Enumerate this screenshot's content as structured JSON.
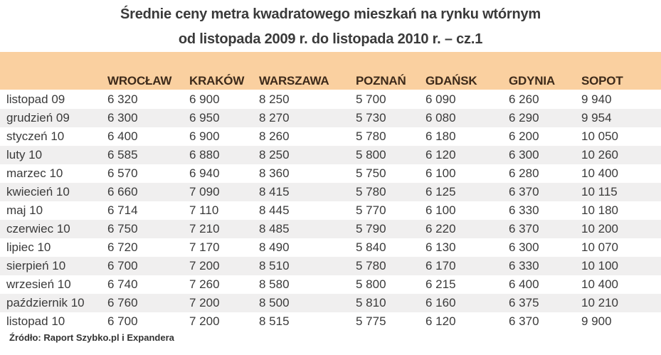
{
  "title": {
    "line1": "Średnie ceny metra kwadratowego mieszkań na rynku wtórnym",
    "line2": "od listopada 2009 r. do listopada 2010 r. – cz.1"
  },
  "colors": {
    "header_band": "#fad0a0",
    "header_text": "#3d2a1a",
    "row_stripe": "#f0efef",
    "body_text": "#3a3a3a"
  },
  "table": {
    "columns": [
      "",
      "WROCŁAW",
      "KRAKÓW",
      "WARSZAWA",
      "POZNAŃ",
      "GDAŃSK",
      "GDYNIA",
      "SOPOT"
    ],
    "rows": [
      [
        "listopad 09",
        "6 320",
        "6 900",
        "8 250",
        "5 700",
        "6 090",
        "6 260",
        "9 940"
      ],
      [
        "grudzień 09",
        "6 300",
        "6 950",
        "8 270",
        "5 730",
        "6 080",
        "6 290",
        "9 954"
      ],
      [
        "styczeń 10",
        "6 400",
        "6 900",
        "8 260",
        "5 780",
        "6 180",
        "6 200",
        "10 050"
      ],
      [
        "luty 10",
        "6 585",
        "6 880",
        "8 250",
        "5 800",
        "6 120",
        "6 300",
        "10 260"
      ],
      [
        "marzec 10",
        "6 570",
        "6 940",
        "8 360",
        "5 750",
        "6 100",
        "6 280",
        "10 400"
      ],
      [
        "kwiecień 10",
        "6 660",
        "7 090",
        "8 415",
        "5 780",
        "6 125",
        "6 370",
        "10 115"
      ],
      [
        "maj 10",
        "6 714",
        "7 110",
        "8 445",
        "5 770",
        "6 100",
        "6 330",
        "10 180"
      ],
      [
        "czerwiec 10",
        "6 750",
        "7 210",
        "8 485",
        "5 790",
        "6 220",
        "6 370",
        "10 200"
      ],
      [
        "lipiec 10",
        "6 720",
        "7 170",
        "8 490",
        "5 840",
        "6 130",
        "6 300",
        "10 070"
      ],
      [
        "sierpień 10",
        "6 700",
        "7 200",
        "8 510",
        "5 780",
        "6 170",
        "6 330",
        "10 100"
      ],
      [
        "wrzesień 10",
        "6 740",
        "7 260",
        "8 580",
        "5 800",
        "6 215",
        "6 400",
        "10 400"
      ],
      [
        "październik 10",
        "6 760",
        "7 200",
        "8 500",
        "5 810",
        "6 160",
        "6 375",
        "10 210"
      ],
      [
        "listopad 10",
        "6 700",
        "7 200",
        "8 515",
        "5 775",
        "6 120",
        "6 370",
        "9 900"
      ]
    ]
  },
  "source": "Źródło: Raport Szybko.pl i Expandera"
}
